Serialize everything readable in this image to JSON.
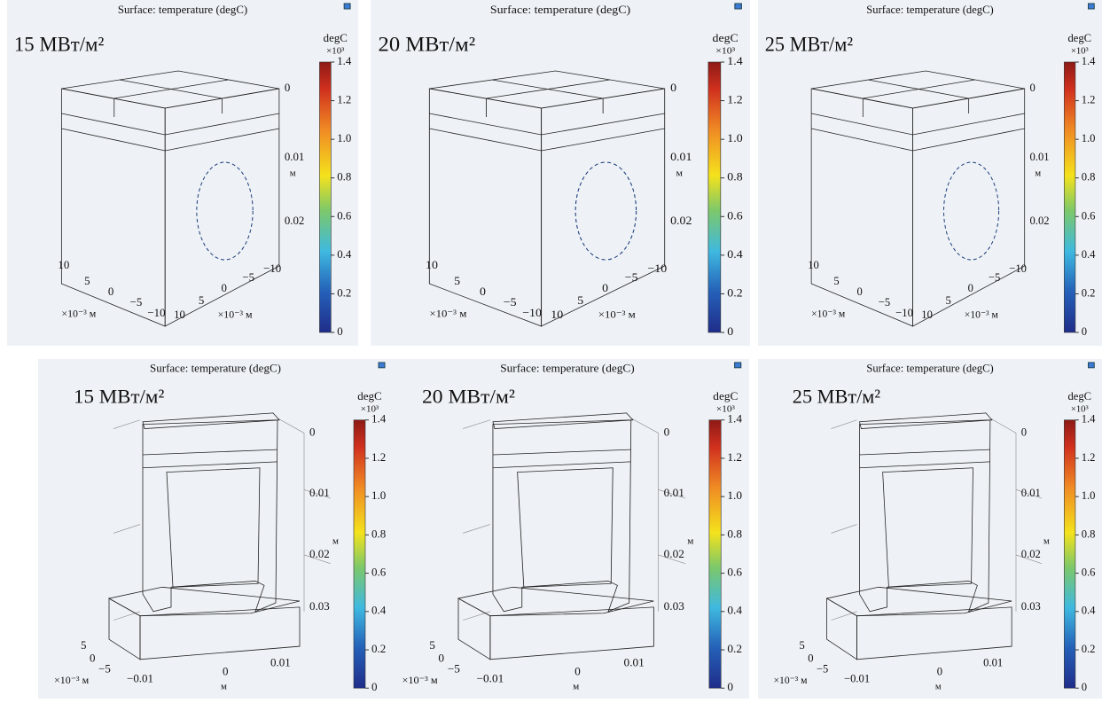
{
  "common": {
    "title": "Surface: temperature (degC)",
    "unit": "degC",
    "multiplier": "×10³",
    "colorbar_ticks": [
      0,
      0.2,
      0.4,
      0.6,
      0.8,
      {
        "value": 1,
        "label": "1.0"
      },
      1.2,
      1.4
    ]
  },
  "top_axes": {
    "z_ticks": [
      "0",
      "0.01",
      "0.02"
    ],
    "z_unit": "м",
    "xy_ticks": [
      "10",
      "5",
      "0",
      "−5",
      "−10"
    ],
    "xy_unit": "×10⁻³ м"
  },
  "bottom_axes": {
    "z_ticks": [
      "0",
      "0.01",
      "0.02",
      "0.03"
    ],
    "z_unit": "м",
    "y_ticks": [
      "5",
      "0",
      "−5"
    ],
    "y_unit": "×10⁻³ м",
    "x_ticks": [
      "−0.01",
      "0",
      "0.01"
    ],
    "x_unit": "м"
  },
  "top_panels": [
    {
      "flux": "15 MВт/м²",
      "color": "#f0dc2c",
      "mid_color": "#49b6c8"
    },
    {
      "flux": "20 MВт/м²",
      "color": "#ef8a30",
      "mid_color": "#5cc2a8"
    },
    {
      "flux": "25 MВт/м²",
      "color": "#c8281e",
      "mid_color": "#6cc6a0"
    }
  ],
  "bottom_panels": [
    {
      "flux": "15 MВт/м²",
      "color": "#e4d83a",
      "mid_color": "#44b0d6"
    },
    {
      "flux": "20 MВт/м²",
      "color": "#f08a28",
      "mid_color": "#62c0a6"
    },
    {
      "flux": "25 MВт/м²",
      "color": "#d6301f",
      "mid_color": "#6ac49c"
    }
  ]
}
